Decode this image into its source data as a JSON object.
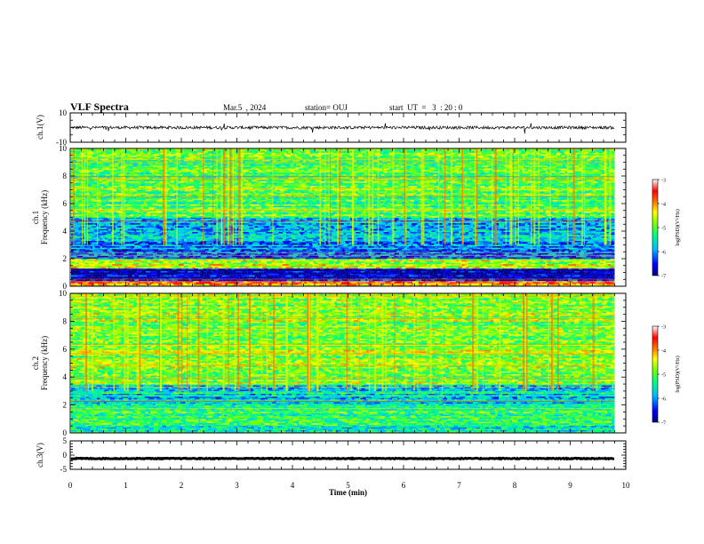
{
  "header": {
    "title": "VLF Spectra",
    "date": "Mar.5  , 2024",
    "station": "station= OUJ",
    "start": "start  UT  =   3  : 20 : 0"
  },
  "chart_data": {
    "type": "heatmap",
    "xlabel": "Time  (min)",
    "xlim": [
      0,
      10
    ],
    "x_ticks": [
      "0",
      "1",
      "2",
      "3",
      "4",
      "5",
      "6",
      "7",
      "8",
      "9",
      "10"
    ],
    "waveform_top": {
      "ylabel": "ch.1(V)",
      "ylim": [
        -10,
        10
      ],
      "y_ticks": [
        "10",
        "-10"
      ],
      "mean": 0.0,
      "noise_amplitude": 1.0,
      "trace_end_min": 9.8
    },
    "spectrogram_ch1": {
      "ylabel_line1": "ch.1",
      "ylabel_line2": "Frequency  (kHz)",
      "ylim": [
        0,
        10
      ],
      "y_ticks": [
        "0",
        "2",
        "4",
        "6",
        "8",
        "10"
      ],
      "trace_end_min": 9.8,
      "bands_khz": [
        {
          "from": 0.0,
          "to": 0.4,
          "level": -4.0
        },
        {
          "from": 0.4,
          "to": 1.3,
          "level": -6.7
        },
        {
          "from": 1.3,
          "to": 2.0,
          "level": -4.6
        },
        {
          "from": 2.0,
          "to": 3.3,
          "level": -6.1
        },
        {
          "from": 3.3,
          "to": 5.0,
          "level": -5.8
        },
        {
          "from": 5.0,
          "to": 10.0,
          "level": -5.0
        }
      ]
    },
    "spectrogram_ch2": {
      "ylabel_line1": "ch.2",
      "ylabel_line2": "Frequency  (kHz)",
      "ylim": [
        0,
        10
      ],
      "y_ticks": [
        "0",
        "2",
        "4",
        "6",
        "8",
        "10"
      ],
      "trace_end_min": 9.8,
      "bands_khz": [
        {
          "from": 0.0,
          "to": 0.6,
          "level": -5.5
        },
        {
          "from": 0.6,
          "to": 2.0,
          "level": -5.2
        },
        {
          "from": 2.0,
          "to": 3.5,
          "level": -5.6
        },
        {
          "from": 3.5,
          "to": 10.0,
          "level": -4.8
        }
      ]
    },
    "waveform_bottom": {
      "ylabel": "ch.3(V)",
      "ylim": [
        -5,
        5
      ],
      "y_ticks": [
        "5",
        "0",
        "-5"
      ],
      "mean": -1.2,
      "noise_amplitude": 0.15,
      "trace_end_min": 9.8
    },
    "colorbar": {
      "label": "log(PSD)(V²/Hz)",
      "range": [
        -7,
        -3
      ],
      "ticks": [
        "-3",
        "-4",
        "-5",
        "-6",
        "-7"
      ],
      "colors": [
        "#000080",
        "#0000ff",
        "#00c0ff",
        "#00ff80",
        "#80ff00",
        "#ffff00",
        "#ff8000",
        "#ff0000",
        "#ffffff"
      ]
    }
  }
}
